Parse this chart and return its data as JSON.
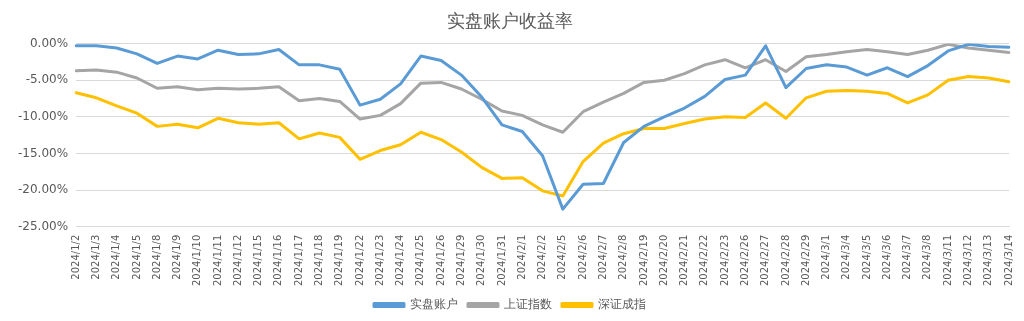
{
  "chart_data": {
    "type": "line",
    "title": "实盘账户收益率",
    "categories": [
      "2024/1/2",
      "2024/1/3",
      "2024/1/4",
      "2024/1/5",
      "2024/1/8",
      "2024/1/9",
      "2024/1/10",
      "2024/1/11",
      "2024/1/12",
      "2024/1/15",
      "2024/1/16",
      "2024/1/17",
      "2024/1/18",
      "2024/1/19",
      "2024/1/22",
      "2024/1/23",
      "2024/1/24",
      "2024/1/25",
      "2024/1/26",
      "2024/1/29",
      "2024/1/30",
      "2024/1/31",
      "2024/2/1",
      "2024/2/2",
      "2024/2/5",
      "2024/2/6",
      "2024/2/7",
      "2024/2/8",
      "2024/2/19",
      "2024/2/20",
      "2024/2/21",
      "2024/2/22",
      "2024/2/23",
      "2024/2/26",
      "2024/2/27",
      "2024/2/28",
      "2024/2/29",
      "2024/3/1",
      "2024/3/4",
      "2024/3/5",
      "2024/3/6",
      "2024/3/7",
      "2024/3/8",
      "2024/3/11",
      "2024/3/12",
      "2024/3/13",
      "2024/3/14"
    ],
    "series": [
      {
        "name": "实盘账户",
        "color": "#5b9bd5",
        "values": [
          -0.3,
          -0.3,
          -0.6,
          -1.4,
          -2.7,
          -1.7,
          -2.1,
          -0.9,
          -1.5,
          -1.4,
          -0.8,
          -2.9,
          -2.9,
          -3.5,
          -8.4,
          -7.6,
          -5.5,
          -1.7,
          -2.3,
          -4.3,
          -7.3,
          -11.1,
          -12.0,
          -15.3,
          -22.6,
          -19.2,
          -19.1,
          -13.5,
          -11.3,
          -10.0,
          -8.8,
          -7.2,
          -4.9,
          -4.3,
          -0.3,
          -6.0,
          -3.4,
          -2.9,
          -3.2,
          -4.3,
          -3.3,
          -4.5,
          -3.0,
          -1.0,
          -0.1,
          -0.4,
          -0.5
        ]
      },
      {
        "name": "上证指数",
        "color": "#a5a5a5",
        "values": [
          -3.7,
          -3.6,
          -3.9,
          -4.7,
          -6.1,
          -5.9,
          -6.3,
          -6.1,
          -6.2,
          -6.1,
          -5.9,
          -7.8,
          -7.5,
          -7.9,
          -10.3,
          -9.8,
          -8.2,
          -5.4,
          -5.3,
          -6.2,
          -7.6,
          -9.2,
          -9.8,
          -11.1,
          -12.1,
          -9.3,
          -8.0,
          -6.8,
          -5.3,
          -5.0,
          -4.1,
          -2.9,
          -2.2,
          -3.3,
          -2.2,
          -3.8,
          -1.8,
          -1.5,
          -1.1,
          -0.8,
          -1.1,
          -1.5,
          -0.9,
          -0.1,
          -0.6,
          -0.9,
          -1.2
        ]
      },
      {
        "name": "深证成指",
        "color": "#ffc000",
        "values": [
          -6.7,
          -7.4,
          -8.5,
          -9.5,
          -11.3,
          -11.0,
          -11.5,
          -10.2,
          -10.8,
          -11.0,
          -10.8,
          -13.0,
          -12.2,
          -12.8,
          -15.8,
          -14.6,
          -13.8,
          -12.1,
          -13.1,
          -14.8,
          -16.9,
          -18.4,
          -18.3,
          -20.1,
          -20.8,
          -16.1,
          -13.6,
          -12.3,
          -11.6,
          -11.6,
          -10.9,
          -10.3,
          -10.0,
          -10.1,
          -8.1,
          -10.2,
          -7.4,
          -6.5,
          -6.4,
          -6.5,
          -6.8,
          -8.1,
          -7.0,
          -5.0,
          -4.5,
          -4.7,
          -5.2
        ]
      }
    ],
    "ylim": [
      -25,
      0
    ],
    "yticks": [
      {
        "value": 0,
        "label": "0.00%"
      },
      {
        "value": -5,
        "label": "-5.00%"
      },
      {
        "value": -10,
        "label": "-10.00%"
      },
      {
        "value": -15,
        "label": "-15.00%"
      },
      {
        "value": -20,
        "label": "-20.00%"
      },
      {
        "value": -25,
        "label": "-25.00%"
      }
    ],
    "grid": "y",
    "legend": "bottom",
    "marker": "none",
    "line_style": "solid"
  }
}
